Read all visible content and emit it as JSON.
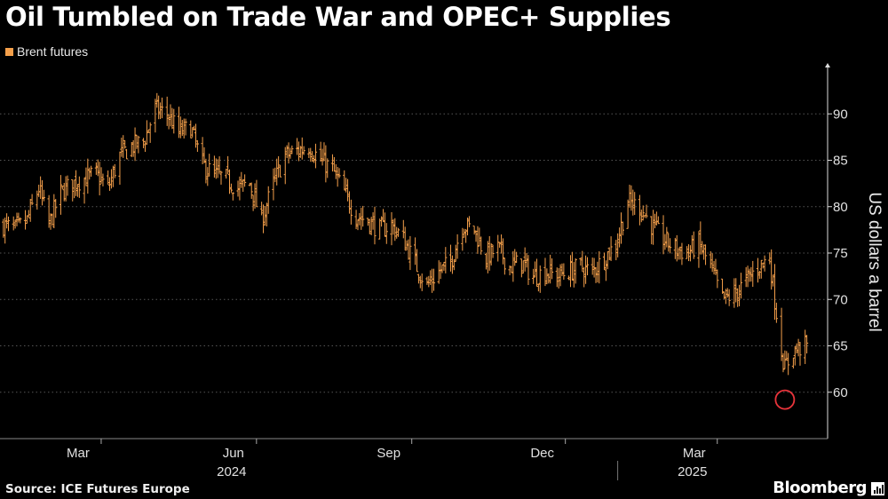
{
  "header": {
    "title": "Oil Tumbled on Trade War and OPEC+ Supplies",
    "legend_label": "Brent futures"
  },
  "footer": {
    "source": "Source: ICE Futures Europe",
    "brand": "Bloomberg"
  },
  "colors": {
    "series": "#f5a04b",
    "highlight": "#e8343b",
    "grid": "#555555",
    "background": "#000000"
  },
  "chart_data": {
    "type": "line",
    "style": "ohlc-bars",
    "title": "Oil Tumbled on Trade War and OPEC+ Supplies",
    "ylabel": "US dollars a barrel",
    "ylim": [
      55,
      95
    ],
    "yticks": [
      60,
      65,
      70,
      75,
      80,
      85,
      90
    ],
    "y_axis_side": "right",
    "grid": "horizontal dotted",
    "legend": "top-left",
    "x_month_labels": [
      "Mar",
      "Jun",
      "Sep",
      "Dec",
      "Mar"
    ],
    "x_year_labels": [
      "2024",
      "2025"
    ],
    "annotation": "circle around low of about 60 in April 2025",
    "series": [
      {
        "name": "Brent futures",
        "x": [
          "2024-01-02",
          "2024-01-09",
          "2024-01-16",
          "2024-01-23",
          "2024-01-29",
          "2024-02-05",
          "2024-02-12",
          "2024-02-19",
          "2024-02-26",
          "2024-03-04",
          "2024-03-11",
          "2024-03-18",
          "2024-03-25",
          "2024-04-01",
          "2024-04-08",
          "2024-04-15",
          "2024-04-22",
          "2024-04-29",
          "2024-05-06",
          "2024-05-13",
          "2024-05-20",
          "2024-05-27",
          "2024-06-03",
          "2024-06-10",
          "2024-06-17",
          "2024-06-24",
          "2024-07-01",
          "2024-07-08",
          "2024-07-15",
          "2024-07-22",
          "2024-07-29",
          "2024-08-05",
          "2024-08-12",
          "2024-08-19",
          "2024-08-26",
          "2024-09-03",
          "2024-09-09",
          "2024-09-16",
          "2024-09-23",
          "2024-09-30",
          "2024-10-07",
          "2024-10-14",
          "2024-10-21",
          "2024-10-28",
          "2024-11-04",
          "2024-11-11",
          "2024-11-18",
          "2024-11-25",
          "2024-12-02",
          "2024-12-09",
          "2024-12-16",
          "2024-12-23",
          "2024-12-30",
          "2025-01-06",
          "2025-01-13",
          "2025-01-20",
          "2025-01-27",
          "2025-02-03",
          "2025-02-10",
          "2025-02-17",
          "2025-02-24",
          "2025-03-03",
          "2025-03-10",
          "2025-03-17",
          "2025-03-24",
          "2025-03-31",
          "2025-04-03",
          "2025-04-07",
          "2025-04-09",
          "2025-04-14",
          "2025-04-22"
        ],
        "values": [
          78.0,
          77.5,
          78.5,
          82.0,
          78.0,
          81.5,
          82.5,
          83.0,
          83.5,
          82.0,
          85.5,
          86.5,
          87.0,
          90.5,
          90.0,
          88.0,
          88.5,
          84.5,
          83.5,
          83.0,
          82.0,
          82.5,
          78.5,
          82.5,
          85.5,
          86.0,
          86.5,
          85.0,
          84.0,
          81.5,
          79.0,
          78.5,
          77.5,
          78.0,
          76.5,
          73.5,
          71.5,
          73.0,
          74.0,
          78.0,
          77.5,
          74.5,
          75.5,
          73.5,
          74.0,
          72.5,
          73.0,
          72.5,
          73.0,
          73.5,
          73.0,
          74.5,
          76.0,
          80.5,
          80.0,
          78.0,
          76.5,
          75.5,
          75.0,
          76.0,
          73.5,
          70.0,
          70.5,
          72.0,
          73.5,
          74.5,
          70.0,
          64.5,
          62.5,
          64.5,
          65.0
        ]
      }
    ]
  }
}
